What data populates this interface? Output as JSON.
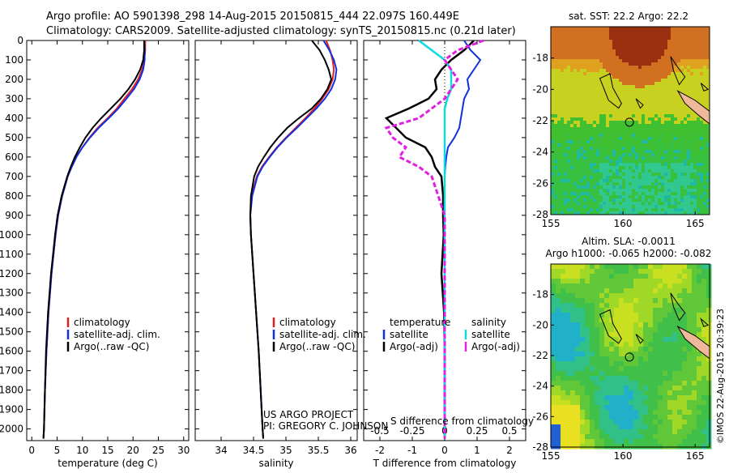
{
  "header": {
    "line1": "Argo profile: AO 5901398_298 14-Aug-2015 20150815_444 22.097S 160.449E",
    "line2": "Climatology: CARS2009. Satellite-adjusted climatology: synTS_20150815.nc (0.21d later)"
  },
  "colors": {
    "climatology": "#e02020",
    "satellite": "#1030e0",
    "argo": "#000000",
    "salinity_satellite": "#10d8e0",
    "salinity_argo": "#e020e0"
  },
  "legends": {
    "temp_panel": [
      "climatology",
      "satellite-adj. clim.",
      "Argo(..raw -QC)"
    ],
    "sal_panel": [
      "climatology",
      "satellite-adj. clim.",
      "Argo(..raw -QC)"
    ],
    "diff_temp_header": "temperature",
    "diff_sal_header": "salinity",
    "diff_temp": [
      "satellite",
      "Argo(-adj)"
    ],
    "diff_sal": [
      "satellite",
      "Argo(-adj)"
    ]
  },
  "project": {
    "line1": "US ARGO PROJECT",
    "line2": "PI: GREGORY C. JOHNSON"
  },
  "maps": {
    "top_title": "sat. SST: 22.2 Argo: 22.2",
    "bottom_title1": "Altim. SLA: -0.0011",
    "bottom_title2": "Argo h1000: -0.065 h2000: -0.082",
    "x_ticks": [
      "155",
      "160",
      "165"
    ],
    "y_ticks": [
      "-18",
      "-20",
      "-22",
      "-24",
      "-26",
      "-28"
    ],
    "x_tick_values": [
      155,
      160,
      165
    ],
    "y_tick_values": [
      -18,
      -20,
      -22,
      -24,
      -26,
      -28
    ],
    "lon_range": [
      155,
      166
    ],
    "lat_range": [
      -28,
      -16
    ],
    "float_position": [
      160.449,
      -22.097
    ]
  },
  "stamp": "©IMOS 22-Aug-2015 20:39:23",
  "chart_data": [
    {
      "type": "line",
      "xlabel": "temperature (deg C)",
      "ylabel": "",
      "xlim": [
        -1,
        31
      ],
      "ylim": [
        2060,
        0
      ],
      "x_ticks": [
        "0",
        "5",
        "10",
        "15",
        "20",
        "25",
        "30"
      ],
      "y_ticks": [
        "0",
        "100",
        "200",
        "300",
        "400",
        "500",
        "600",
        "700",
        "800",
        "900",
        "1000",
        "1100",
        "1200",
        "1300",
        "1400",
        "1500",
        "1600",
        "1700",
        "1800",
        "1900",
        "2000"
      ],
      "depth": [
        0,
        50,
        100,
        150,
        200,
        250,
        300,
        350,
        400,
        450,
        500,
        550,
        600,
        650,
        700,
        800,
        900,
        1000,
        1200,
        1400,
        1600,
        1800,
        2000,
        2050
      ],
      "series": [
        {
          "name": "climatology",
          "values": [
            22.4,
            22.4,
            22.2,
            21.8,
            21.0,
            19.8,
            18.3,
            16.8,
            15.0,
            13.0,
            11.4,
            10.0,
            8.8,
            7.9,
            7.1,
            6.0,
            5.2,
            4.7,
            3.9,
            3.3,
            2.9,
            2.6,
            2.4,
            2.3
          ]
        },
        {
          "name": "satellite-adj. clim.",
          "values": [
            22.2,
            22.3,
            22.3,
            22.0,
            21.3,
            20.2,
            18.7,
            17.1,
            15.2,
            13.2,
            11.5,
            10.0,
            8.8,
            7.9,
            7.1,
            6.0,
            5.2,
            4.7,
            3.9,
            3.3,
            2.9,
            2.6,
            2.4,
            2.3
          ]
        },
        {
          "name": "Argo(..raw -QC)",
          "values": [
            22.2,
            22.2,
            22.0,
            21.4,
            20.4,
            19.1,
            17.5,
            15.6,
            13.7,
            12.0,
            10.6,
            9.5,
            8.5,
            7.7,
            7.0,
            5.9,
            5.1,
            4.6,
            3.8,
            3.2,
            2.8,
            2.6,
            2.4,
            2.3
          ]
        }
      ]
    },
    {
      "type": "line",
      "xlabel": "salinity",
      "ylabel": "",
      "xlim": [
        33.6,
        36.1
      ],
      "ylim": [
        2060,
        0
      ],
      "x_ticks": [
        "34",
        "34.5",
        "35",
        "35.5",
        "36"
      ],
      "depth": [
        0,
        50,
        100,
        150,
        200,
        250,
        300,
        350,
        400,
        450,
        500,
        550,
        600,
        650,
        700,
        800,
        900,
        1000,
        1200,
        1400,
        1600,
        1800,
        2000,
        2050
      ],
      "series": [
        {
          "name": "climatology",
          "values": [
            35.62,
            35.68,
            35.72,
            35.74,
            35.72,
            35.66,
            35.56,
            35.44,
            35.3,
            35.15,
            35.0,
            34.86,
            34.74,
            34.63,
            34.55,
            34.47,
            34.45,
            34.46,
            34.5,
            34.54,
            34.58,
            34.61,
            34.64,
            34.65
          ]
        },
        {
          "name": "satellite-adj. clim.",
          "values": [
            35.58,
            35.67,
            35.74,
            35.78,
            35.76,
            35.7,
            35.6,
            35.47,
            35.32,
            35.17,
            35.01,
            34.87,
            34.75,
            34.64,
            34.56,
            34.48,
            34.45,
            34.46,
            34.5,
            34.54,
            34.58,
            34.61,
            34.64,
            34.65
          ]
        },
        {
          "name": "Argo(..raw -QC)",
          "values": [
            35.4,
            35.52,
            35.6,
            35.66,
            35.7,
            35.64,
            35.54,
            35.4,
            35.2,
            35.02,
            34.88,
            34.76,
            34.66,
            34.57,
            34.51,
            34.46,
            34.45,
            34.46,
            34.5,
            34.54,
            34.58,
            34.61,
            34.64,
            34.65
          ]
        }
      ]
    },
    {
      "type": "line",
      "xlabel": "T difference from climatology",
      "subtitle": "S difference from climatology",
      "xlim": [
        -2.5,
        2.5
      ],
      "ylim": [
        2060,
        0
      ],
      "x_ticks": [
        "-2",
        "-1",
        "0",
        "1",
        "2"
      ],
      "x_ticks_top": [
        "-0.5",
        "-0.25",
        "0",
        "0.25",
        "0.5"
      ],
      "depth": [
        0,
        50,
        100,
        150,
        200,
        250,
        300,
        350,
        400,
        450,
        500,
        550,
        600,
        650,
        700,
        800,
        900,
        1000,
        1200,
        1400,
        1600,
        1800,
        2000,
        2050
      ],
      "series": [
        {
          "name": "temperature satellite",
          "values": [
            0.6,
            0.8,
            1.1,
            0.9,
            0.7,
            0.75,
            0.6,
            0.55,
            0.5,
            0.45,
            0.3,
            0.1,
            0.05,
            0.02,
            0.0,
            0.0,
            0.0,
            0.0,
            0.0,
            0.0,
            0.0,
            0.0,
            0.0,
            0.0
          ]
        },
        {
          "name": "temperature Argo(-adj)",
          "values": [
            0.9,
            0.6,
            0.2,
            -0.1,
            -0.3,
            -0.25,
            -0.5,
            -1.1,
            -1.8,
            -1.5,
            -1.2,
            -0.6,
            -0.4,
            -0.3,
            -0.1,
            -0.05,
            -0.05,
            -0.03,
            -0.1,
            -0.02,
            0.0,
            0.0,
            0.0,
            0.0
          ]
        },
        {
          "name": "salinity satellite",
          "values": [
            -0.2,
            -0.1,
            0.0,
            0.05,
            0.05,
            0.05,
            0.02,
            0.0,
            0.0,
            0.0,
            0.0,
            0.0,
            0.0,
            0.0,
            0.0,
            0.0,
            0.0,
            0.0,
            0.0,
            0.0,
            0.0,
            0.0,
            0.0,
            0.0
          ]
        },
        {
          "name": "salinity Argo(-adj)",
          "values": [
            0.3,
            0.1,
            0.0,
            0.05,
            0.1,
            0.05,
            0.0,
            -0.1,
            -0.2,
            -0.45,
            -0.4,
            -0.3,
            -0.35,
            -0.2,
            -0.1,
            -0.05,
            0.0,
            0.0,
            0.0,
            0.0,
            0.0,
            0.0,
            0.0,
            0.0
          ]
        }
      ]
    }
  ]
}
